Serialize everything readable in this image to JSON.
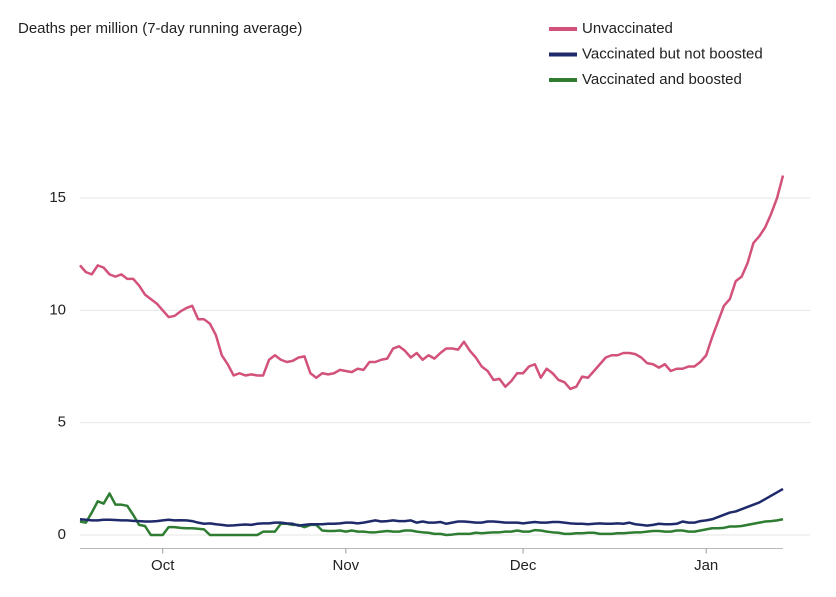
{
  "chart_data": {
    "type": "line",
    "y_label": "Deaths per million (7-day running average)",
    "categories": [
      null,
      null,
      null,
      null,
      null,
      null,
      null,
      null,
      null,
      null,
      null,
      null,
      null,
      null,
      "Oct",
      null,
      null,
      null,
      null,
      null,
      null,
      null,
      null,
      null,
      null,
      null,
      null,
      null,
      null,
      null,
      null,
      null,
      null,
      null,
      null,
      null,
      null,
      null,
      null,
      null,
      null,
      null,
      null,
      null,
      null,
      "Nov",
      null,
      null,
      null,
      null,
      null,
      null,
      null,
      null,
      null,
      null,
      null,
      null,
      null,
      null,
      null,
      null,
      null,
      null,
      null,
      null,
      null,
      null,
      null,
      null,
      null,
      null,
      null,
      null,
      null,
      "Dec",
      null,
      null,
      null,
      null,
      null,
      null,
      null,
      null,
      null,
      null,
      null,
      null,
      null,
      null,
      null,
      null,
      null,
      null,
      null,
      null,
      null,
      null,
      null,
      null,
      null,
      null,
      null,
      null,
      null,
      null,
      "Jan",
      null,
      null,
      null,
      null,
      null,
      null,
      null,
      null,
      null,
      null,
      null,
      null,
      null
    ],
    "series": [
      {
        "name": "Unvaccinated",
        "color": "#d2527a",
        "values": [
          12.0,
          11.7,
          11.6,
          12.0,
          11.9,
          11.6,
          11.5,
          11.6,
          11.4,
          11.4,
          11.1,
          10.7,
          10.5,
          10.3,
          10.0,
          9.7,
          9.75,
          9.95,
          10.1,
          10.2,
          9.6,
          9.6,
          9.4,
          8.9,
          8.0,
          7.6,
          7.1,
          7.2,
          7.1,
          7.15,
          7.1,
          7.1,
          7.8,
          8.0,
          7.8,
          7.7,
          7.75,
          7.9,
          7.95,
          7.2,
          7.0,
          7.2,
          7.15,
          7.2,
          7.35,
          7.3,
          7.25,
          7.4,
          7.35,
          7.7,
          7.7,
          7.8,
          7.85,
          8.3,
          8.4,
          8.2,
          7.9,
          8.1,
          7.8,
          8.0,
          7.85,
          8.1,
          8.3,
          8.3,
          8.25,
          8.6,
          8.2,
          7.9,
          7.5,
          7.3,
          6.9,
          6.95,
          6.6,
          6.85,
          7.2,
          7.2,
          7.5,
          7.6,
          7.0,
          7.4,
          7.2,
          6.9,
          6.8,
          6.5,
          6.6,
          7.05,
          7.0,
          7.3,
          7.6,
          7.9,
          8.0,
          8.0,
          8.1,
          8.1,
          8.05,
          7.9,
          7.65,
          7.6,
          7.45,
          7.6,
          7.3,
          7.4,
          7.4,
          7.5,
          7.5,
          7.7,
          8.0,
          8.8,
          9.5,
          10.2,
          10.5,
          11.3,
          11.5,
          12.1,
          13.0,
          13.3,
          13.7,
          14.3,
          15.0,
          16.0
        ]
      },
      {
        "name": "Vaccinated but not boosted",
        "color": "#1f2a6b",
        "values": [
          0.7,
          0.68,
          0.65,
          0.65,
          0.68,
          0.68,
          0.67,
          0.65,
          0.65,
          0.63,
          0.62,
          0.6,
          0.6,
          0.62,
          0.65,
          0.68,
          0.65,
          0.66,
          0.65,
          0.62,
          0.55,
          0.5,
          0.52,
          0.48,
          0.45,
          0.42,
          0.43,
          0.45,
          0.47,
          0.45,
          0.5,
          0.52,
          0.52,
          0.55,
          0.55,
          0.52,
          0.5,
          0.42,
          0.45,
          0.48,
          0.48,
          0.48,
          0.5,
          0.5,
          0.52,
          0.55,
          0.55,
          0.52,
          0.55,
          0.6,
          0.65,
          0.6,
          0.62,
          0.65,
          0.62,
          0.62,
          0.65,
          0.55,
          0.6,
          0.55,
          0.55,
          0.58,
          0.5,
          0.55,
          0.6,
          0.6,
          0.58,
          0.55,
          0.55,
          0.6,
          0.6,
          0.58,
          0.55,
          0.55,
          0.55,
          0.52,
          0.55,
          0.58,
          0.55,
          0.55,
          0.58,
          0.58,
          0.55,
          0.52,
          0.5,
          0.5,
          0.48,
          0.5,
          0.52,
          0.5,
          0.5,
          0.52,
          0.5,
          0.55,
          0.48,
          0.45,
          0.42,
          0.45,
          0.5,
          0.48,
          0.48,
          0.5,
          0.6,
          0.55,
          0.55,
          0.62,
          0.65,
          0.7,
          0.8,
          0.9,
          1.0,
          1.05,
          1.15,
          1.25,
          1.35,
          1.45,
          1.6,
          1.75,
          1.9,
          2.05
        ]
      },
      {
        "name": "Vaccinated and boosted",
        "color": "#2e7d32",
        "values": [
          0.6,
          0.55,
          1.0,
          1.5,
          1.4,
          1.85,
          1.35,
          1.35,
          1.3,
          0.9,
          0.45,
          0.4,
          0.0,
          0.0,
          0.0,
          0.35,
          0.35,
          0.32,
          0.3,
          0.3,
          0.28,
          0.25,
          0.0,
          0.0,
          0.0,
          0.0,
          0.0,
          0.0,
          0.0,
          0.0,
          0.0,
          0.15,
          0.15,
          0.15,
          0.5,
          0.5,
          0.45,
          0.45,
          0.35,
          0.45,
          0.45,
          0.2,
          0.18,
          0.18,
          0.2,
          0.15,
          0.2,
          0.15,
          0.15,
          0.12,
          0.12,
          0.15,
          0.18,
          0.15,
          0.15,
          0.2,
          0.2,
          0.15,
          0.12,
          0.1,
          0.05,
          0.05,
          0.0,
          0.02,
          0.05,
          0.05,
          0.05,
          0.1,
          0.08,
          0.1,
          0.12,
          0.12,
          0.15,
          0.15,
          0.2,
          0.15,
          0.15,
          0.22,
          0.2,
          0.15,
          0.12,
          0.1,
          0.05,
          0.05,
          0.08,
          0.08,
          0.1,
          0.1,
          0.05,
          0.05,
          0.05,
          0.08,
          0.08,
          0.1,
          0.12,
          0.12,
          0.15,
          0.18,
          0.18,
          0.15,
          0.15,
          0.2,
          0.2,
          0.15,
          0.15,
          0.2,
          0.25,
          0.3,
          0.3,
          0.32,
          0.38,
          0.38,
          0.4,
          0.45,
          0.5,
          0.55,
          0.6,
          0.62,
          0.65,
          0.7
        ]
      }
    ],
    "ylim": [
      -0.6,
      17.5
    ],
    "yticks": [
      0,
      5,
      10,
      15
    ],
    "grid": true,
    "legend": "top-right"
  }
}
